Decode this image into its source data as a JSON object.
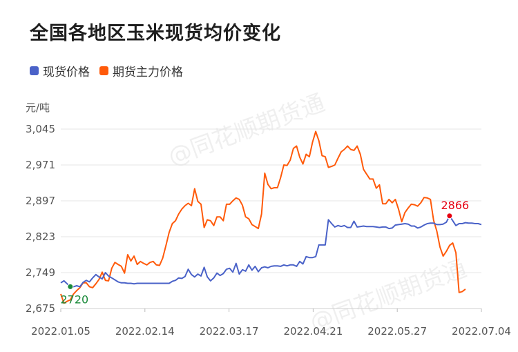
{
  "title": "全国各地区玉米现货均价变化",
  "watermark": "@同花顺期货通",
  "colors": {
    "spot": "#4a62c8",
    "futures": "#ff5a0a",
    "min_marker": "#1a8a3a",
    "max_marker": "#e60012"
  },
  "chart_data": {
    "type": "line",
    "title": "全国各地区玉米现货均价变化",
    "ylabel": "元/吨",
    "ylim": [
      2675,
      3045
    ],
    "yticks": [
      "2,675",
      "2,749",
      "2,823",
      "2,897",
      "2,971",
      "3,045"
    ],
    "ytick_values": [
      2675,
      2749,
      2823,
      2897,
      2971,
      3045
    ],
    "xticks": [
      "2022.01.05",
      "2022.02.14",
      "2022.03.17",
      "2022.04.21",
      "2022.05.27",
      "2022.07.04"
    ],
    "grid": true,
    "legend": "top-left",
    "series": [
      {
        "name": "现货价格",
        "color": "#4a62c8",
        "values": [
          2728,
          2732,
          2726,
          2720,
          2720,
          2722,
          2720,
          2729,
          2733,
          2730,
          2738,
          2745,
          2740,
          2736,
          2749,
          2742,
          2738,
          2734,
          2730,
          2728,
          2728,
          2727,
          2727,
          2726,
          2727,
          2727,
          2727,
          2727,
          2727,
          2727,
          2727,
          2727,
          2727,
          2727,
          2727,
          2731,
          2733,
          2738,
          2737,
          2741,
          2756,
          2745,
          2740,
          2746,
          2742,
          2760,
          2740,
          2732,
          2738,
          2748,
          2743,
          2747,
          2756,
          2758,
          2750,
          2768,
          2746,
          2755,
          2752,
          2765,
          2754,
          2762,
          2751,
          2759,
          2761,
          2759,
          2762,
          2763,
          2763,
          2762,
          2765,
          2763,
          2765,
          2765,
          2762,
          2772,
          2767,
          2782,
          2780,
          2780,
          2782,
          2806,
          2806,
          2806,
          2858,
          2850,
          2843,
          2846,
          2844,
          2846,
          2842,
          2842,
          2855,
          2843,
          2844,
          2845,
          2844,
          2844,
          2844,
          2843,
          2842,
          2843,
          2843,
          2840,
          2841,
          2847,
          2848,
          2849,
          2850,
          2849,
          2845,
          2845,
          2841,
          2843,
          2847,
          2850,
          2851,
          2851,
          2848,
          2848,
          2849,
          2853,
          2866,
          2856,
          2846,
          2850,
          2850,
          2852,
          2851,
          2851,
          2850,
          2850,
          2848
        ]
      },
      {
        "name": "期货主力价格",
        "color": "#ff5a0a",
        "values": [
          2705,
          2686,
          2690,
          2693,
          2705,
          2712,
          2718,
          2728,
          2728,
          2720,
          2718,
          2726,
          2735,
          2750,
          2733,
          2732,
          2758,
          2770,
          2766,
          2762,
          2748,
          2786,
          2773,
          2783,
          2766,
          2772,
          2768,
          2765,
          2770,
          2772,
          2765,
          2764,
          2779,
          2805,
          2832,
          2850,
          2856,
          2870,
          2880,
          2887,
          2892,
          2887,
          2922,
          2896,
          2890,
          2842,
          2858,
          2856,
          2846,
          2864,
          2864,
          2856,
          2890,
          2890,
          2897,
          2903,
          2900,
          2888,
          2864,
          2860,
          2848,
          2844,
          2840,
          2870,
          2954,
          2931,
          2922,
          2924,
          2924,
          2945,
          2971,
          2970,
          2981,
          3005,
          3010,
          2987,
          2973,
          2993,
          2988,
          3018,
          3040,
          3021,
          2990,
          2988,
          2966,
          2968,
          2971,
          2985,
          2998,
          3003,
          3010,
          3003,
          3001,
          3010,
          2993,
          2962,
          2952,
          2942,
          2942,
          2923,
          2930,
          2891,
          2891,
          2900,
          2893,
          2900,
          2880,
          2854,
          2873,
          2882,
          2890,
          2889,
          2886,
          2893,
          2904,
          2903,
          2900,
          2857,
          2835,
          2802,
          2783,
          2793,
          2805,
          2810,
          2790,
          2708,
          2710,
          2715
        ]
      }
    ],
    "annotations": [
      {
        "label": "2720",
        "series": "现货价格",
        "index": 3,
        "value": 2720,
        "kind": "min"
      },
      {
        "label": "2866",
        "series": "现货价格",
        "index": 122,
        "value": 2866,
        "kind": "max"
      }
    ]
  }
}
